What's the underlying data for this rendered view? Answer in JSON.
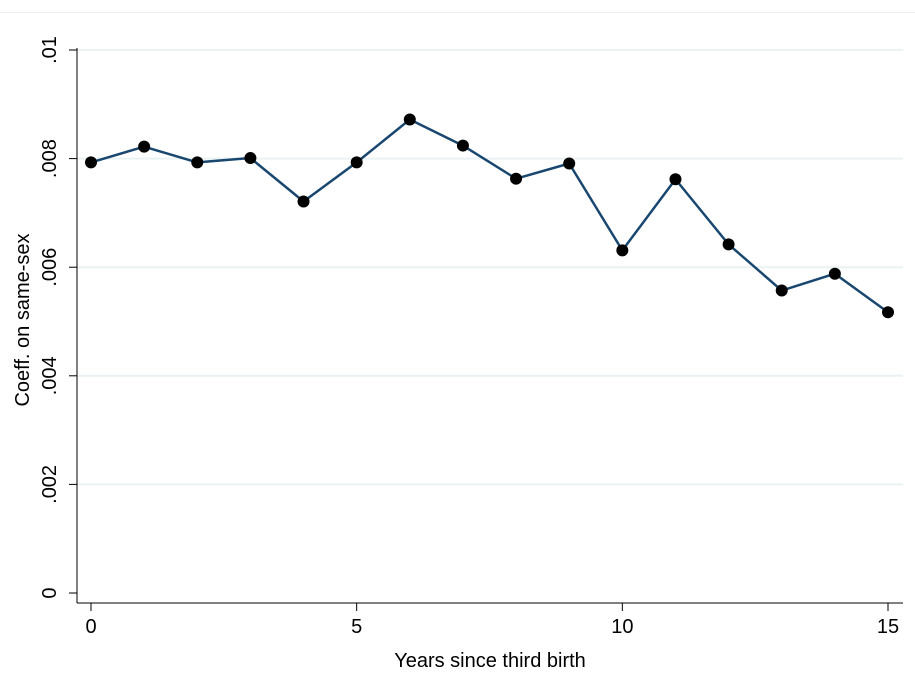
{
  "chart_data": {
    "type": "line",
    "title": "",
    "xlabel": "Years since third birth",
    "ylabel": "Coeff. on same-sex",
    "xlim": [
      0,
      15
    ],
    "ylim": [
      0,
      0.01
    ],
    "x_ticks": [
      0,
      5,
      10,
      15
    ],
    "x_tick_labels": [
      "0",
      "5",
      "10",
      "15"
    ],
    "y_ticks": [
      0,
      0.002,
      0.004,
      0.006,
      0.008,
      0.01
    ],
    "y_tick_labels": [
      "0",
      ".002",
      ".004",
      ".006",
      ".008",
      ".01"
    ],
    "grid": "horizontal",
    "series": [
      {
        "x": [
          0,
          1,
          2,
          3,
          4,
          5,
          6,
          7,
          8,
          9,
          10,
          11,
          12,
          13,
          14,
          15
        ],
        "values": [
          0.00793,
          0.00822,
          0.00793,
          0.00801,
          0.00721,
          0.00793,
          0.00872,
          0.00824,
          0.00763,
          0.00791,
          0.00631,
          0.00762,
          0.00642,
          0.00557,
          0.00588,
          0.00517
        ]
      }
    ],
    "colors": {
      "line": "#1a476f",
      "marker": "#000000",
      "grid": "#eaf2f3",
      "axis": "#000000"
    }
  }
}
